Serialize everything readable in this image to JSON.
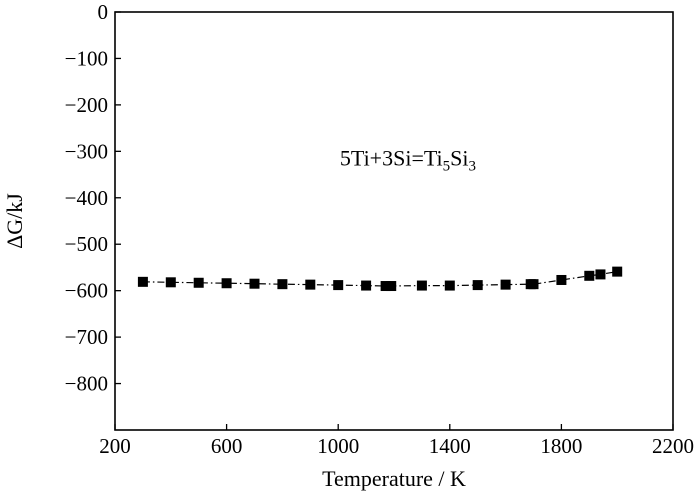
{
  "chart_data": {
    "type": "line",
    "title": "",
    "xlabel": "Temperature / K",
    "ylabel": "ΔG/kJ",
    "xlim": [
      200,
      2200
    ],
    "ylim": [
      -900,
      0
    ],
    "xticks": [
      200,
      600,
      1000,
      1400,
      1800,
      2200
    ],
    "xtick_labels": [
      "200",
      "600",
      "1000",
      "1400",
      "1800",
      "2200"
    ],
    "yticks": [
      0,
      -100,
      -200,
      -300,
      -400,
      -500,
      -600,
      -700,
      -800
    ],
    "ytick_labels": [
      "0",
      "−100",
      "−200",
      "−300",
      "−400",
      "−500",
      "−600",
      "−700",
      "−800"
    ],
    "grid": false,
    "legend": false,
    "annotation": {
      "text_main": "5Ti+3Si=Ti",
      "sub1": "5",
      "text_mid": "Si",
      "sub2": "3",
      "x": 1250,
      "y": -330
    },
    "series": [
      {
        "marker": "square",
        "line_style": "dashed",
        "color": "#000000",
        "x": [
          300,
          400,
          500,
          600,
          700,
          800,
          900,
          1000,
          1100,
          1170,
          1190,
          1300,
          1400,
          1500,
          1600,
          1690,
          1700,
          1800,
          1900,
          1940,
          2000
        ],
        "y": [
          -581,
          -582,
          -583,
          -584,
          -585,
          -586,
          -587,
          -588,
          -589,
          -590,
          -590,
          -589,
          -589,
          -588,
          -587,
          -586,
          -586,
          -577,
          -568,
          -565,
          -559
        ]
      }
    ]
  }
}
